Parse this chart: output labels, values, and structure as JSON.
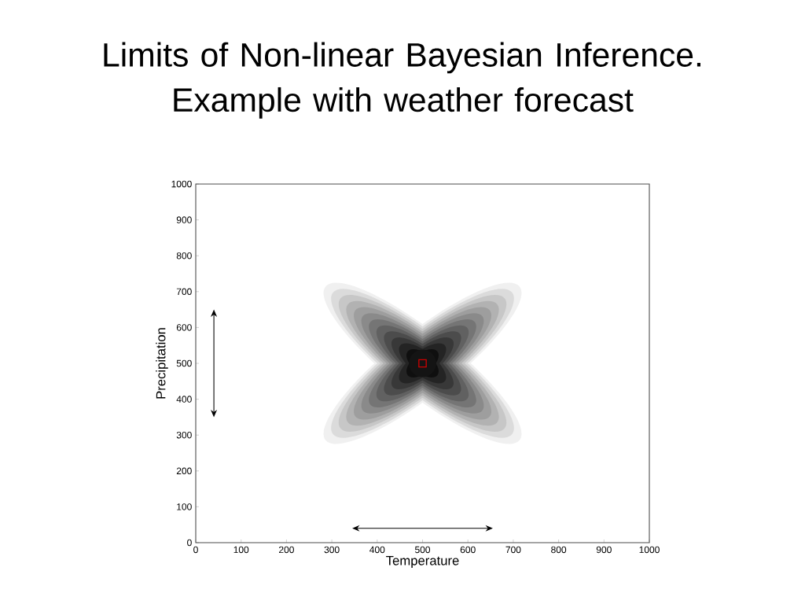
{
  "chart_data": {
    "type": "scatter",
    "title": "Limits of Non-linear Bayesian Inference. Example with weather forecast",
    "xlabel": "Temperature",
    "ylabel": "Precipitation",
    "x": [
      500
    ],
    "values": [
      500
    ],
    "color": "#cc0000",
    "marker": "square",
    "xlim": [
      0,
      1000
    ],
    "ylim": [
      0,
      1000
    ],
    "xticks": [
      0,
      100,
      200,
      300,
      400,
      500,
      600,
      700,
      800,
      900,
      1000
    ],
    "yticks": [
      0,
      100,
      200,
      300,
      400,
      500,
      600,
      700,
      800,
      900,
      1000
    ]
  }
}
